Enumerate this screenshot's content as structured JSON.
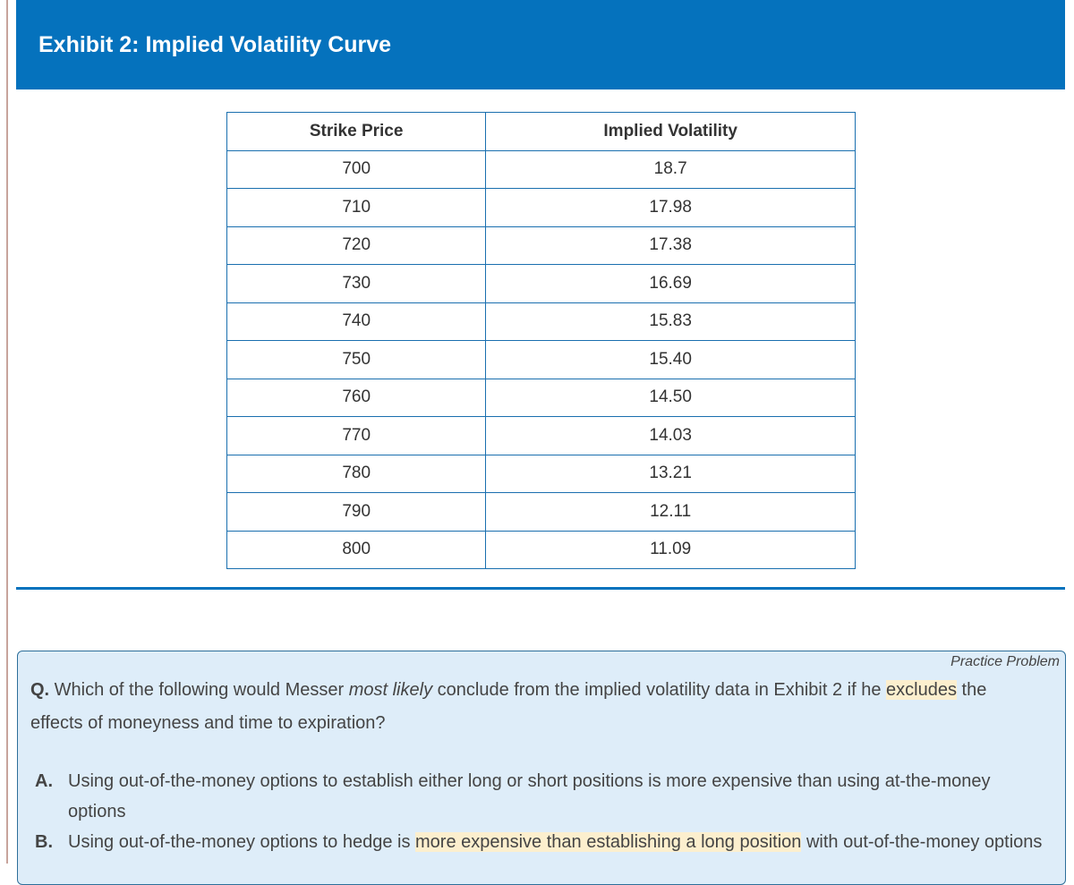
{
  "exhibit": {
    "title": "Exhibit 2:  Implied Volatility Curve"
  },
  "table": {
    "headers": [
      "Strike Price",
      "Implied Volatility"
    ],
    "rows": [
      [
        "700",
        "18.7"
      ],
      [
        "710",
        "17.98"
      ],
      [
        "720",
        "17.38"
      ],
      [
        "730",
        "16.69"
      ],
      [
        "740",
        "15.83"
      ],
      [
        "750",
        "15.40"
      ],
      [
        "760",
        "14.50"
      ],
      [
        "770",
        "14.03"
      ],
      [
        "780",
        "13.21"
      ],
      [
        "790",
        "12.11"
      ],
      [
        "800",
        "11.09"
      ]
    ]
  },
  "problem": {
    "tag": "Practice Problem",
    "q_label": "Q.",
    "q_part1": " Which of the following would Messer ",
    "q_emph": "most likely",
    "q_part2": " conclude from the implied volatility data in Exhibit 2 if he ",
    "q_highlight": "excludes",
    "q_part3": " the effects of moneyness and time to expiration?",
    "options": [
      {
        "label": "A.",
        "text": "Using out-of-the-money options to establish either long or short positions is more expensive than using at-the-money options"
      },
      {
        "label": "B.",
        "pre": "Using out-of-the-money options to hedge is ",
        "highlight": "more expensive than establishing a long position",
        "post": " with out-of-the-money options"
      }
    ]
  },
  "colors": {
    "header_bg": "#0572bd",
    "box_bg": "#deedf9",
    "highlight": "#fcefce"
  }
}
